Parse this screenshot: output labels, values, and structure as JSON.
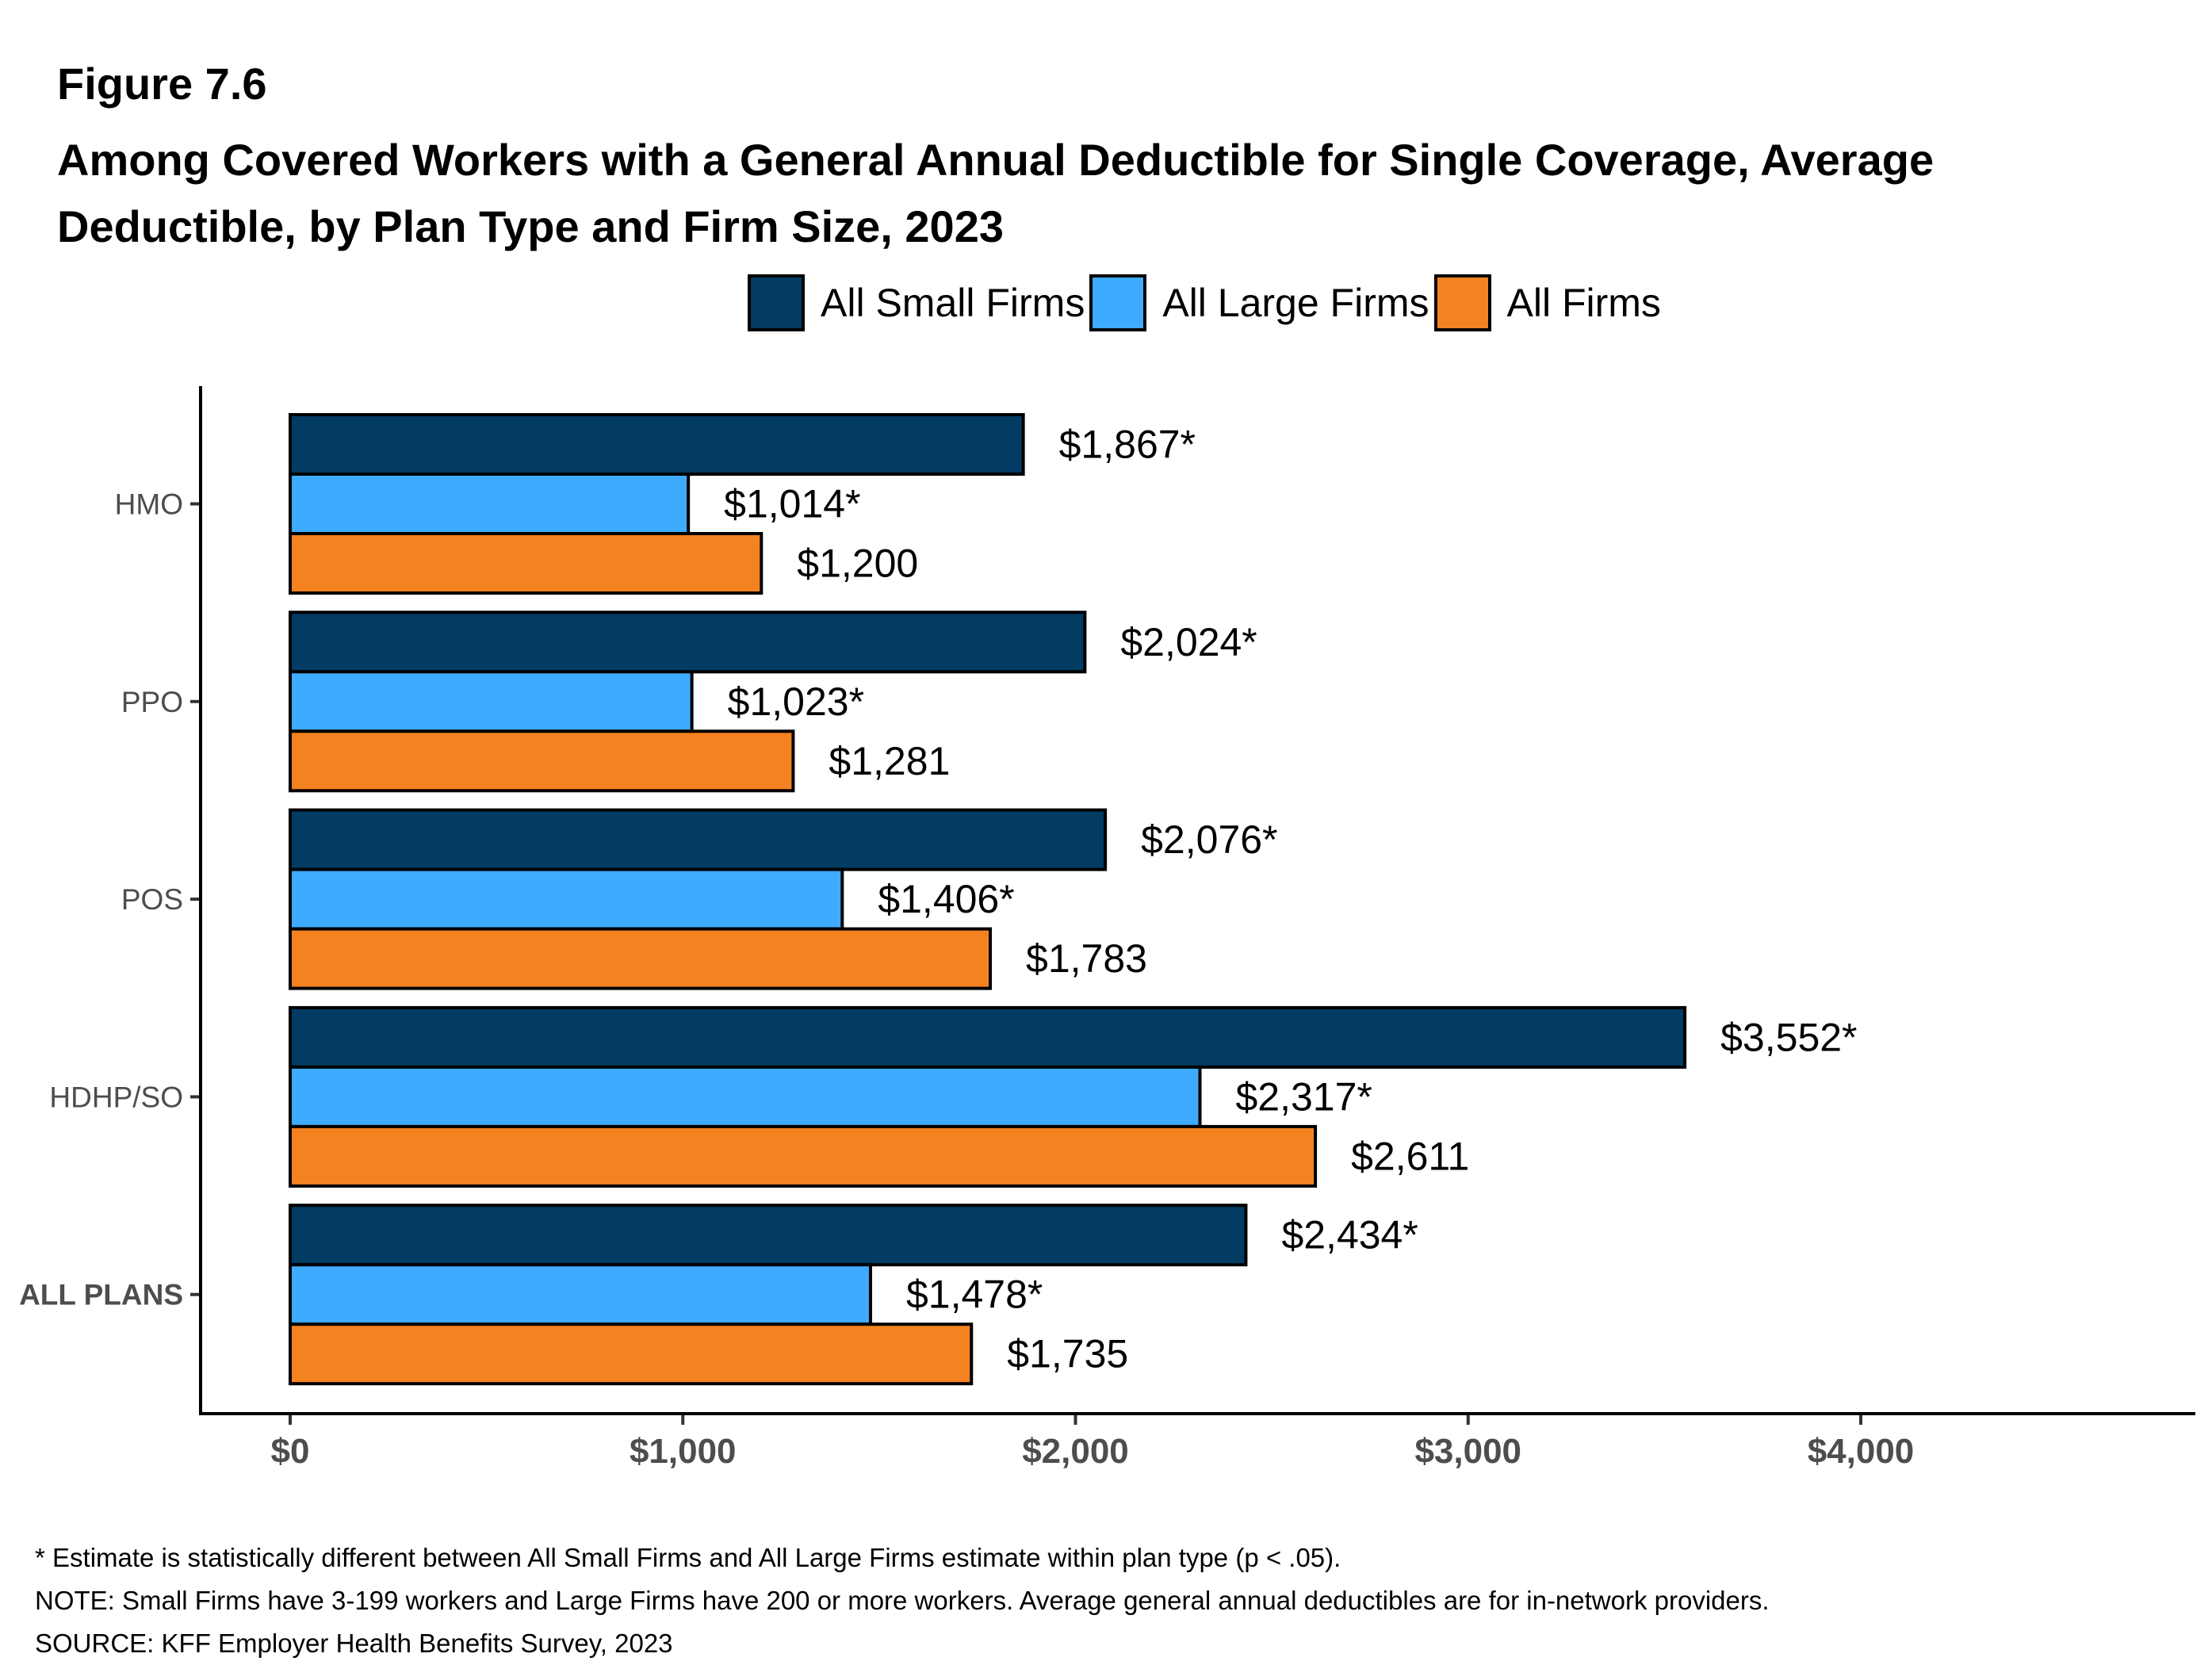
{
  "figure_label": "Figure 7.6",
  "title": "Among Covered Workers with a General Annual Deductible for Single Coverage, Average Deductible, by Plan Type and Firm Size, 2023",
  "title_lines": [
    "Among Covered Workers with a General Annual Deductible for Single Coverage, Average",
    "Deductible, by Plan Type and Firm Size, 2023"
  ],
  "legend": [
    {
      "label": "All Small Firms",
      "color": "#023B64"
    },
    {
      "label": "All Large Firms",
      "color": "#3EABFE"
    },
    {
      "label": "All Firms",
      "color": "#F58220"
    }
  ],
  "footnotes": {
    "significance": "* Estimate is statistically different between All Small Firms and All Large Firms estimate within plan type (p < .05).",
    "note": "NOTE: Small Firms have 3-199 workers and Large Firms have 200 or more workers. Average general annual deductibles are for in-network providers.",
    "source": "SOURCE: KFF Employer Health Benefits Survey, 2023"
  },
  "chart_data": {
    "type": "bar",
    "orientation": "horizontal",
    "title": "Among Covered Workers with a General Annual Deductible for Single Coverage, Average Deductible, by Plan Type and Firm Size, 2023",
    "xlabel": "",
    "ylabel": "",
    "categories": [
      "HMO",
      "PPO",
      "POS",
      "HDHP/SO",
      "ALL PLANS"
    ],
    "category_bold": [
      false,
      false,
      false,
      false,
      true
    ],
    "series": [
      {
        "name": "All Small Firms",
        "color": "#023B64",
        "values": [
          1867,
          2024,
          2076,
          3552,
          2434
        ],
        "labels": [
          "$1,867*",
          "$2,024*",
          "$2,076*",
          "$3,552*",
          "$2,434*"
        ]
      },
      {
        "name": "All Large Firms",
        "color": "#3EABFE",
        "values": [
          1014,
          1023,
          1406,
          2317,
          1478
        ],
        "labels": [
          "$1,014*",
          "$1,023*",
          "$1,406*",
          "$2,317*",
          "$1,478*"
        ]
      },
      {
        "name": "All Firms",
        "color": "#F58220",
        "values": [
          1200,
          1281,
          1783,
          2611,
          1735
        ],
        "labels": [
          "$1,200",
          "$1,281",
          "$1,783",
          "$2,611",
          "$1,735"
        ]
      }
    ],
    "xlim": [
      -230,
      4850
    ],
    "xticks": [
      0,
      1000,
      2000,
      3000,
      4000
    ],
    "xtick_labels": [
      "$0",
      "$1,000",
      "$2,000",
      "$3,000",
      "$4,000"
    ],
    "grid": false,
    "legend_position": "top"
  }
}
